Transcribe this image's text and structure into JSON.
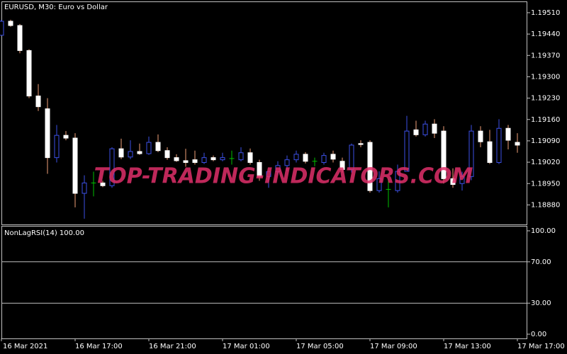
{
  "chart_data": [
    {
      "type": "candlestick",
      "title": "EURUSD, M30:  Euro vs  Dollar",
      "watermark": "TOP-TRADING-INDICATORS.COM",
      "categories": [
        "16 Mar 2021",
        null,
        null,
        null,
        null,
        null,
        null,
        null,
        "16 Mar 17:00",
        null,
        null,
        null,
        null,
        null,
        null,
        null,
        "16 Mar 21:00",
        null,
        null,
        null,
        null,
        null,
        null,
        null,
        "17 Mar 01:00",
        null,
        null,
        null,
        null,
        null,
        null,
        null,
        "17 Mar 05:00",
        null,
        null,
        null,
        null,
        null,
        null,
        null,
        "17 Mar 09:00",
        null,
        null,
        null,
        null,
        null,
        null,
        null,
        "17 Mar 13:00",
        null,
        null,
        null,
        null,
        null,
        null,
        null,
        "17 Mar 17:00"
      ],
      "open": [
        1.19436,
        1.19482,
        1.19468,
        1.19386,
        1.19237,
        1.19195,
        1.19035,
        1.19108,
        1.19099,
        1.18918,
        1.18952,
        1.18952,
        1.18943,
        1.19064,
        1.19037,
        1.19055,
        1.19048,
        1.19085,
        1.19058,
        1.19035,
        1.19025,
        1.19028,
        1.19019,
        1.19035,
        1.19028,
        1.19032,
        1.19028,
        1.19051,
        1.19019,
        1.18973,
        1.18989,
        1.19009,
        1.19028,
        1.19046,
        1.19023,
        1.19019,
        1.19046,
        1.19023,
        1.18996,
        1.19081,
        1.19085,
        1.18927,
        1.18931,
        1.18927,
        1.1899,
        1.19126,
        1.1911,
        1.19145,
        1.19122,
        1.18966,
        1.1895,
        1.18973,
        1.19122,
        1.19087,
        1.19019,
        1.19131,
        1.19085
      ],
      "high": [
        1.19487,
        1.19487,
        1.19473,
        1.1939,
        1.19276,
        1.1923,
        1.19142,
        1.19122,
        1.19115,
        1.18977,
        1.18989,
        1.18959,
        1.19069,
        1.19097,
        1.19092,
        1.19081,
        1.19104,
        1.19111,
        1.19069,
        1.19046,
        1.19064,
        1.19058,
        1.19051,
        1.19042,
        1.19051,
        1.19058,
        1.19069,
        1.19065,
        1.19028,
        1.1899,
        1.19023,
        1.19042,
        1.19058,
        1.19053,
        1.19035,
        1.19051,
        1.19058,
        1.19035,
        1.19081,
        1.19092,
        1.19092,
        1.1899,
        1.18966,
        1.19012,
        1.19172,
        1.19156,
        1.19156,
        1.19161,
        1.19138,
        1.19,
        1.18989,
        1.19142,
        1.19138,
        1.19126,
        1.19161,
        1.19142,
        1.19115
      ],
      "low": [
        1.19436,
        1.19464,
        1.19377,
        1.1923,
        1.19188,
        1.18982,
        1.19019,
        1.19092,
        1.18872,
        1.18835,
        1.18908,
        1.18938,
        1.18936,
        1.1903,
        1.1903,
        1.19044,
        1.19044,
        1.19053,
        1.19028,
        1.19021,
        1.19005,
        1.19012,
        1.19014,
        1.19023,
        1.19023,
        1.19012,
        1.19023,
        1.19012,
        1.18959,
        1.18936,
        1.18977,
        1.1899,
        1.19019,
        1.19016,
        1.19007,
        1.19012,
        1.19019,
        1.18986,
        1.18986,
        1.19069,
        1.1892,
        1.1892,
        1.18872,
        1.1892,
        1.18989,
        1.19104,
        1.19104,
        1.19099,
        1.1895,
        1.18936,
        1.18927,
        1.18961,
        1.19069,
        1.19014,
        1.19014,
        1.19062,
        1.19051
      ],
      "close": [
        1.19482,
        1.19468,
        1.19386,
        1.19237,
        1.19202,
        1.19035,
        1.19108,
        1.19099,
        1.18918,
        1.18952,
        1.18952,
        1.18943,
        1.19064,
        1.19037,
        1.19055,
        1.19048,
        1.19085,
        1.19058,
        1.19035,
        1.19025,
        1.19019,
        1.19019,
        1.19035,
        1.19028,
        1.19035,
        1.19032,
        1.19051,
        1.19019,
        1.18973,
        1.18989,
        1.19009,
        1.19028,
        1.19046,
        1.19023,
        1.19023,
        1.19042,
        1.1903,
        1.18996,
        1.19076,
        1.19078,
        1.18927,
        1.18966,
        1.18931,
        1.1899,
        1.19122,
        1.1911,
        1.19145,
        1.19115,
        1.18966,
        1.18947,
        1.18973,
        1.19122,
        1.19087,
        1.19019,
        1.19131,
        1.19092,
        1.19076
      ],
      "up_color": "#3c50e6",
      "down_color": "#ffffff",
      "down_wick_color": "#f0a078",
      "doji_color": "#00c000",
      "ylim": [
        1.18816,
        1.19547
      ],
      "yticks": [
        {
          "value": 1.1951,
          "label": "1.19510"
        },
        {
          "value": 1.1944,
          "label": "1.19440"
        },
        {
          "value": 1.1937,
          "label": "1.19370"
        },
        {
          "value": 1.193,
          "label": "1.19300"
        },
        {
          "value": 1.1923,
          "label": "1.19230"
        },
        {
          "value": 1.1916,
          "label": "1.19160"
        },
        {
          "value": 1.1909,
          "label": "1.19090"
        },
        {
          "value": 1.1902,
          "label": "1.19020"
        },
        {
          "value": 1.1895,
          "label": "1.18950"
        },
        {
          "value": 1.1888,
          "label": "1.18880"
        }
      ]
    },
    {
      "type": "indicator",
      "title": "NonLagRSI(14) 100.00",
      "ylim": [
        -4.1,
        104.8
      ],
      "levels": [
        70,
        30
      ],
      "yticks": [
        {
          "value": 100,
          "label": "100.00"
        },
        {
          "value": 70,
          "label": "70.00"
        },
        {
          "value": 30,
          "label": "30.00"
        },
        {
          "value": 0,
          "label": "0.00"
        }
      ]
    }
  ]
}
